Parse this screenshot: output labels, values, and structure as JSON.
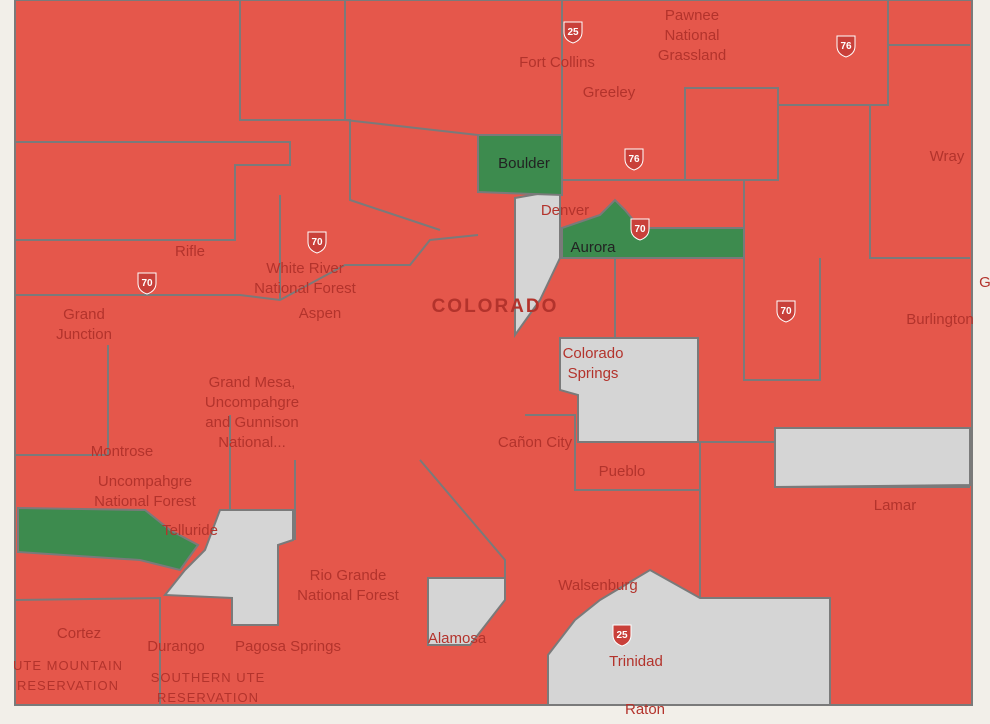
{
  "map": {
    "labels": {
      "pawnee": [
        "Pawnee",
        "National",
        "Grassland"
      ],
      "fort_collins": [
        "Fort Collins"
      ],
      "greeley": [
        "Greeley"
      ],
      "boulder": [
        "Boulder"
      ],
      "denver": [
        "Denver"
      ],
      "aurora": [
        "Aurora"
      ],
      "wray": [
        "Wray"
      ],
      "rifle": [
        "Rifle"
      ],
      "white_river": [
        "White River",
        "National Forest"
      ],
      "colorado": [
        "COLORADO"
      ],
      "grand_junction": [
        "Grand",
        "Junction"
      ],
      "aspen": [
        "Aspen"
      ],
      "burlington": [
        "Burlington"
      ],
      "colorado_springs": [
        "Colorado",
        "Springs"
      ],
      "grand_mesa": [
        "Grand Mesa,",
        "Uncompahgre",
        "and Gunnison",
        "National..."
      ],
      "montrose": [
        "Montrose"
      ],
      "canon_city": [
        "Cañon City"
      ],
      "pueblo": [
        "Pueblo"
      ],
      "uncompahgre": [
        "Uncompahgre",
        "National Forest"
      ],
      "telluride": [
        "Telluride"
      ],
      "lamar": [
        "Lamar"
      ],
      "rio_grande": [
        "Rio Grande",
        "National Forest"
      ],
      "walsenburg": [
        "Walsenburg"
      ],
      "cortez": [
        "Cortez"
      ],
      "durango": [
        "Durango"
      ],
      "pagosa": [
        "Pagosa Springs"
      ],
      "alamosa": [
        "Alamosa"
      ],
      "trinidad": [
        "Trinidad"
      ],
      "ute_mountain": [
        "UTE MOUNTAIN",
        "RESERVATION"
      ],
      "southern_ute": [
        "SOUTHERN UTE",
        "RESERVATION"
      ],
      "raton": [
        "Raton"
      ],
      "edge_g": [
        "G"
      ]
    },
    "shields": {
      "i25_north": "25",
      "i76_east": "76",
      "i76_mid": "76",
      "i70_denver": "70",
      "i70_rifle": "70",
      "i70_wr": "70",
      "i70_east": "70",
      "i25_south": "25"
    }
  }
}
